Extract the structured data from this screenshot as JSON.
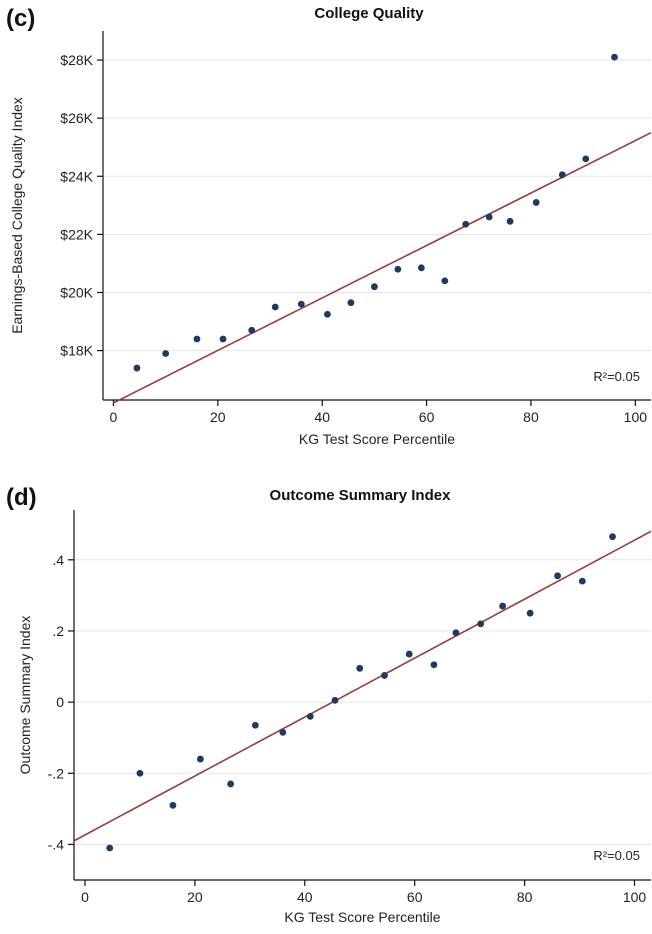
{
  "chart_data": [
    {
      "type": "scatter",
      "panel_label": "(c)",
      "title": "College Quality",
      "xlabel": "KG Test Score Percentile",
      "ylabel": "Earnings-Based College Quality Index",
      "xlim": [
        -2,
        103
      ],
      "ylim": [
        16300,
        29000
      ],
      "xticks": [
        0,
        20,
        40,
        60,
        80,
        100
      ],
      "xtick_labels": [
        "0",
        "20",
        "40",
        "60",
        "80",
        "100"
      ],
      "yticks": [
        18000,
        20000,
        22000,
        24000,
        26000,
        28000
      ],
      "ytick_labels": [
        "$18K",
        "$20K",
        "$22K",
        "$24K",
        "$26K",
        "$28K"
      ],
      "grid": "horizontal",
      "annotation": "R²=0.05",
      "points": {
        "x": [
          4.5,
          10,
          16,
          21,
          26.5,
          31,
          36,
          41,
          45.5,
          50,
          54.5,
          59,
          63.5,
          67.5,
          72,
          76,
          81,
          86,
          90.5,
          96
        ],
        "y": [
          17400,
          17900,
          18400,
          18400,
          18700,
          19500,
          19600,
          19250,
          19650,
          20200,
          20800,
          20850,
          20400,
          22350,
          22600,
          22450,
          23100,
          24050,
          24600,
          28100
        ]
      },
      "fit_line": {
        "x": [
          0,
          103
        ],
        "y": [
          16200,
          25500
        ]
      },
      "colors": {
        "points": "#1f3a5f",
        "fit_line": "#9b3b3b",
        "grid": "#e6e6e6"
      }
    },
    {
      "type": "scatter",
      "panel_label": "(d)",
      "title": "Outcome Summary Index",
      "xlabel": "KG Test Score Percentile",
      "ylabel": "Outcome Summary Index",
      "xlim": [
        -2,
        103
      ],
      "ylim": [
        -0.5,
        0.54
      ],
      "xticks": [
        0,
        20,
        40,
        60,
        80,
        100
      ],
      "xtick_labels": [
        "0",
        "20",
        "40",
        "60",
        "80",
        "100"
      ],
      "yticks": [
        -0.4,
        -0.2,
        0,
        0.2,
        0.4
      ],
      "ytick_labels": [
        "-.4",
        "-.2",
        "0",
        ".2",
        ".4"
      ],
      "grid": "horizontal",
      "annotation": "R²=0.05",
      "points": {
        "x": [
          4.5,
          10,
          16,
          21,
          26.5,
          31,
          36,
          41,
          45.5,
          50,
          54.5,
          59,
          63.5,
          67.5,
          72,
          76,
          81,
          86,
          90.5,
          96
        ],
        "y": [
          -0.41,
          -0.2,
          -0.29,
          -0.16,
          -0.23,
          -0.065,
          -0.085,
          -0.04,
          0.005,
          0.095,
          0.075,
          0.135,
          0.105,
          0.195,
          0.22,
          0.27,
          0.25,
          0.355,
          0.34,
          0.465
        ]
      },
      "fit_line": {
        "x": [
          -2,
          103
        ],
        "y": [
          -0.39,
          0.48
        ]
      },
      "colors": {
        "points": "#1f3a5f",
        "fit_line": "#9b3b3b",
        "grid": "#e6e6e6"
      }
    }
  ]
}
